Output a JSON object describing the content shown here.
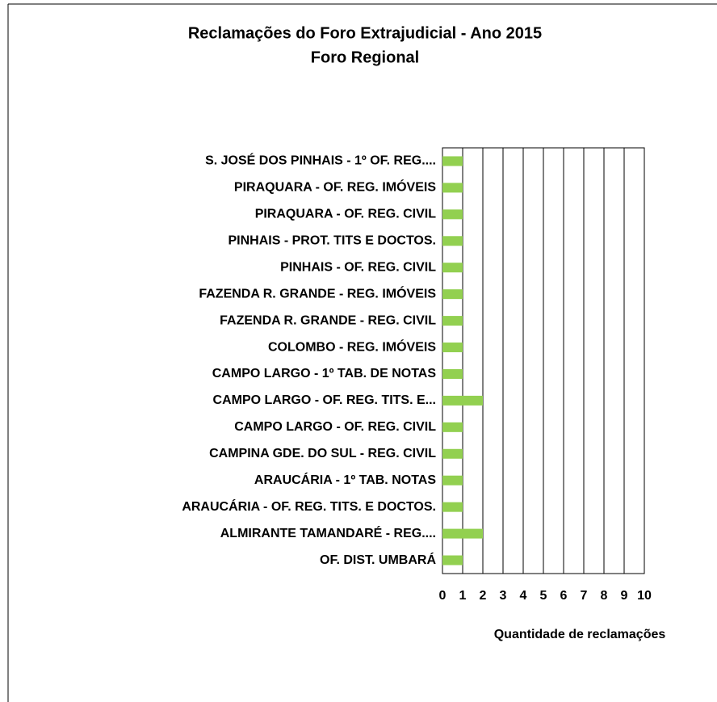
{
  "chart_data": {
    "type": "barh",
    "title": "Reclamações do Foro Extrajudicial - Ano 2015",
    "subtitle": "Foro Regional",
    "x_label": "Quantidade de reclamações",
    "categories": [
      "S. JOSÉ DOS PINHAIS - 1º OF. REG....",
      "PIRAQUARA - OF. REG. IMÓVEIS",
      "PIRAQUARA - OF. REG. CIVIL",
      "PINHAIS - PROT. TITS E DOCTOS.",
      "PINHAIS - OF. REG. CIVIL",
      "FAZENDA R. GRANDE - REG. IMÓVEIS",
      "FAZENDA R. GRANDE - REG. CIVIL",
      "COLOMBO - REG. IMÓVEIS",
      "CAMPO LARGO - 1º TAB. DE NOTAS",
      "CAMPO LARGO - OF. REG. TITS. E...",
      "CAMPO LARGO - OF. REG. CIVIL",
      "CAMPINA GDE. DO SUL - REG. CIVIL",
      "ARAUCÁRIA - 1º TAB. NOTAS",
      "ARAUCÁRIA - OF. REG. TITS. E DOCTOS.",
      "ALMIRANTE TAMANDARÉ - REG....",
      "OF. DIST. UMBARÁ"
    ],
    "values": [
      1,
      1,
      1,
      1,
      1,
      1,
      1,
      1,
      1,
      2,
      1,
      1,
      1,
      1,
      2,
      1
    ],
    "color": "#92d050",
    "xlim": [
      0,
      10
    ],
    "xticks": [
      0,
      1,
      2,
      3,
      4,
      5,
      6,
      7,
      8,
      9,
      10
    ],
    "grid": true
  }
}
